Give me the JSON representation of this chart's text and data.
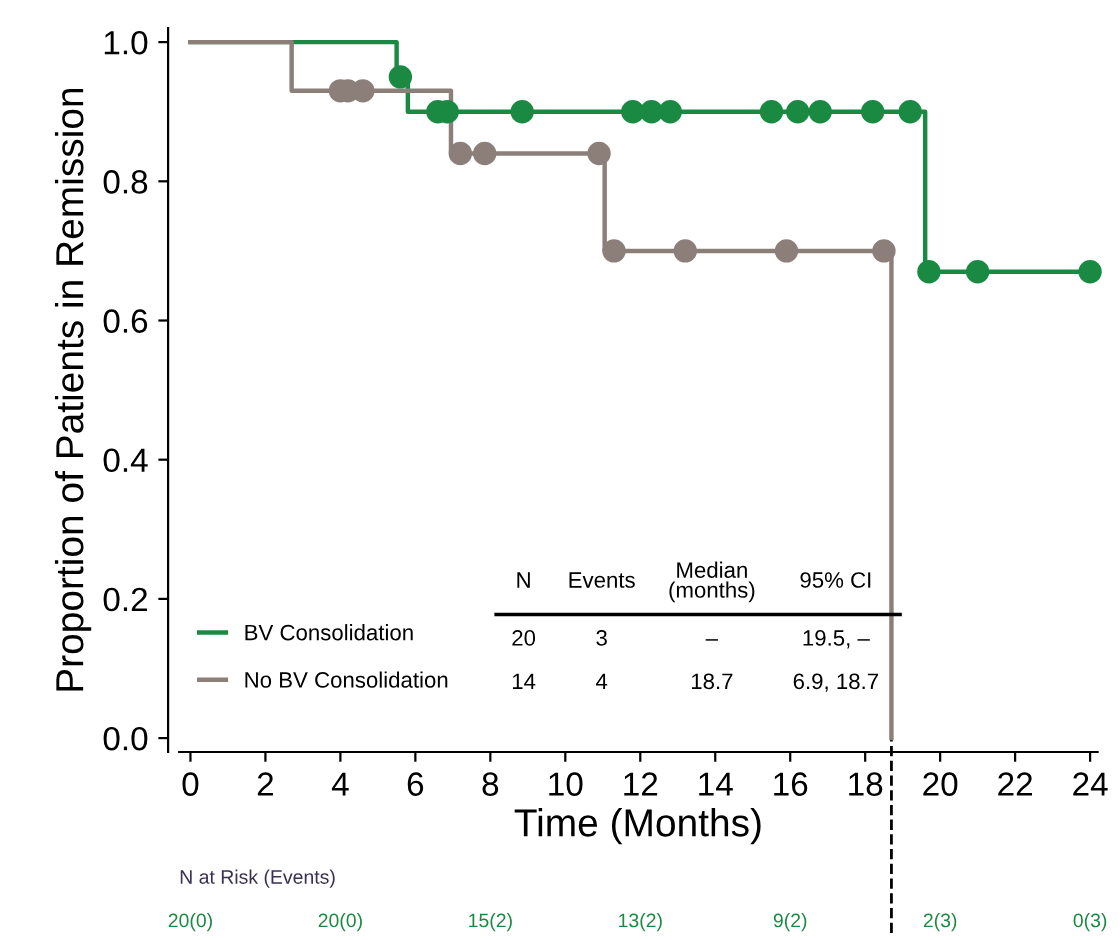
{
  "chart_data": {
    "type": "step",
    "xlabel": "Time (Months)",
    "ylabel": "Proportion of Patients in Remission",
    "xlim": [
      -0.3,
      24.2
    ],
    "xticks": [
      0,
      2,
      4,
      6,
      8,
      10,
      12,
      14,
      16,
      18,
      20,
      22,
      24
    ],
    "ylim": [
      -0.02,
      1.02
    ],
    "yticks": [
      {
        "value": 0,
        "label": "0.0"
      },
      {
        "value": 0.2,
        "label": "0.2"
      },
      {
        "value": 0.4,
        "label": "0.4"
      },
      {
        "value": 0.6,
        "label": "0.6"
      },
      {
        "value": 0.8,
        "label": "0.8"
      },
      {
        "value": 1.0,
        "label": "1.0"
      }
    ],
    "grid": false,
    "legend": "bottom left",
    "line_style": "solid",
    "series": [
      {
        "name": "BV Consolidation",
        "color": "#1a8a43",
        "marker": "none",
        "x": [
          0,
          5.5,
          5.8,
          19.6,
          24
        ],
        "values": [
          1.0,
          0.95,
          0.9,
          0.67,
          0.67
        ]
      },
      {
        "name": "No BV Consolidation",
        "color": "#8c7f7a",
        "marker": "none",
        "x": [
          0,
          2.7,
          6.95,
          11.05,
          18.7
        ],
        "values": [
          1.0,
          0.93,
          0.84,
          0.7,
          0.0
        ]
      },
      {
        "type": "scatter",
        "color": "#1a8a43",
        "marker": "circle",
        "x": [
          5.6,
          6.6,
          6.85,
          8.85,
          11.8,
          12.3,
          12.8,
          15.5,
          16.2,
          16.8,
          18.2,
          19.2,
          19.7,
          21.0,
          24.0
        ],
        "values": [
          0.95,
          0.9,
          0.9,
          0.9,
          0.9,
          0.9,
          0.9,
          0.9,
          0.9,
          0.9,
          0.9,
          0.9,
          0.67,
          0.67,
          0.67
        ]
      },
      {
        "type": "scatter",
        "color": "#8c7f7a",
        "marker": "circle",
        "x": [
          4.0,
          4.2,
          4.6,
          7.2,
          7.85,
          10.9,
          11.3,
          13.2,
          15.9,
          18.5
        ],
        "values": [
          0.93,
          0.93,
          0.93,
          0.84,
          0.84,
          0.84,
          0.7,
          0.7,
          0.7,
          0.7
        ]
      }
    ],
    "ref_lines": [
      {
        "axis": "x",
        "value": 18.7,
        "line_style": "dashed",
        "color": "#000000"
      }
    ],
    "annotations": [
      "N",
      "Events",
      "Median (months)",
      "95% CI",
      "20",
      "3",
      "–",
      "19.5, –",
      "14",
      "4",
      "18.7",
      "6.9, 18.7",
      "N at Risk (Events)",
      "20(0)",
      "20(0)",
      "15(2)",
      "13(2)",
      "9(2)",
      "2(3)",
      "0(3)"
    ]
  }
}
